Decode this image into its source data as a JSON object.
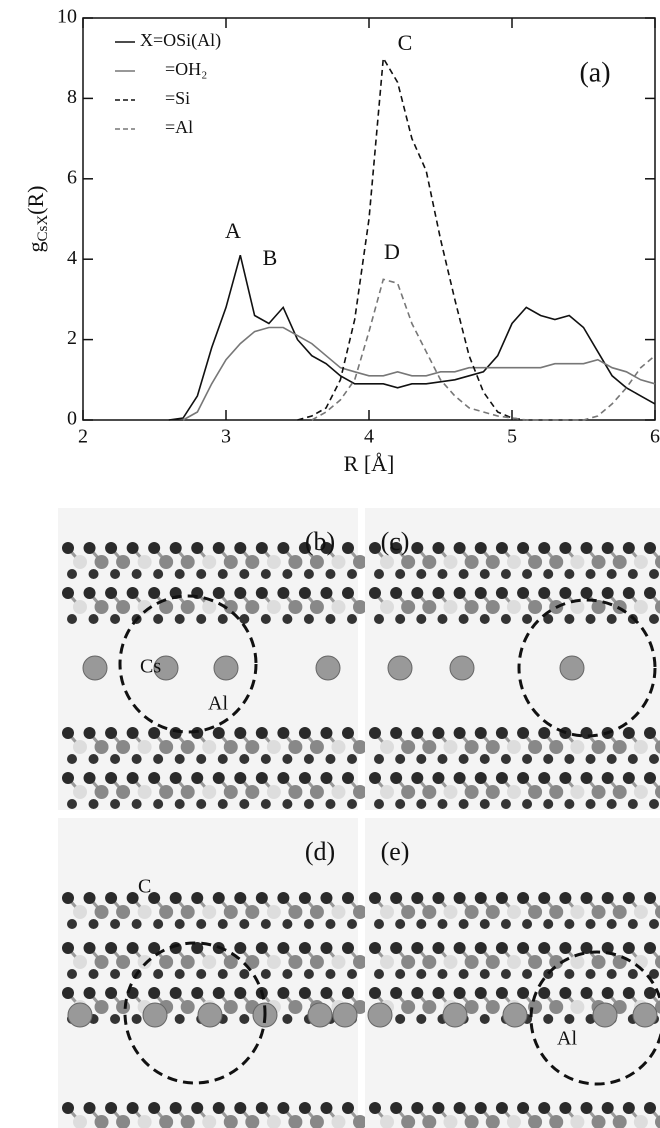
{
  "chart_data": {
    "type": "line",
    "x_label": "R [Å]",
    "y_label": "g",
    "y_label_sub": "CsX",
    "y_label_tail": "(R)",
    "panel_label": "(a)",
    "annotations": [
      "A",
      "B",
      "C",
      "D"
    ],
    "x": [
      2.0,
      2.1,
      2.2,
      2.3,
      2.4,
      2.5,
      2.6,
      2.7,
      2.8,
      2.9,
      3.0,
      3.1,
      3.2,
      3.3,
      3.4,
      3.5,
      3.6,
      3.7,
      3.8,
      3.9,
      4.0,
      4.1,
      4.2,
      4.3,
      4.4,
      4.5,
      4.6,
      4.7,
      4.8,
      4.9,
      5.0,
      5.1,
      5.2,
      5.3,
      5.4,
      5.5,
      5.6,
      5.7,
      5.8,
      5.9,
      6.0
    ],
    "series": [
      {
        "name": "X=OSi(Al)",
        "color": "#111111",
        "dashed": false,
        "values": [
          null,
          null,
          null,
          null,
          null,
          null,
          0,
          0.05,
          0.6,
          1.8,
          2.8,
          4.1,
          2.6,
          2.4,
          2.8,
          2.0,
          1.6,
          1.4,
          1.1,
          0.9,
          0.9,
          0.9,
          0.8,
          0.9,
          0.9,
          0.95,
          1.0,
          1.1,
          1.2,
          1.6,
          2.4,
          2.8,
          2.6,
          2.5,
          2.6,
          2.3,
          1.7,
          1.1,
          0.8,
          0.6,
          0.4
        ]
      },
      {
        "name": "=OH₂",
        "color": "#777777",
        "dashed": false,
        "values": [
          null,
          null,
          null,
          null,
          null,
          null,
          null,
          0,
          0.2,
          0.9,
          1.5,
          1.9,
          2.2,
          2.3,
          2.3,
          2.1,
          1.9,
          1.6,
          1.3,
          1.2,
          1.1,
          1.1,
          1.2,
          1.1,
          1.1,
          1.2,
          1.2,
          1.3,
          1.3,
          1.3,
          1.3,
          1.3,
          1.3,
          1.4,
          1.4,
          1.4,
          1.5,
          1.3,
          1.2,
          1.0,
          0.9
        ]
      },
      {
        "name": "=Si",
        "color": "#111111",
        "dashed": true,
        "values": [
          null,
          null,
          null,
          null,
          null,
          null,
          null,
          null,
          null,
          null,
          null,
          null,
          null,
          null,
          null,
          0,
          0.1,
          0.3,
          1.0,
          2.5,
          5.0,
          9.0,
          8.4,
          7.0,
          6.2,
          4.5,
          3.0,
          1.6,
          0.7,
          0.2,
          0.05,
          0,
          null,
          null,
          null,
          null,
          null,
          null,
          null,
          null,
          null
        ]
      },
      {
        "name": "=Al",
        "color": "#777777",
        "dashed": true,
        "values": [
          null,
          null,
          null,
          null,
          null,
          null,
          null,
          null,
          null,
          null,
          null,
          null,
          null,
          null,
          null,
          null,
          0,
          0.2,
          0.5,
          1.0,
          2.2,
          3.5,
          3.4,
          2.4,
          1.7,
          1.0,
          0.6,
          0.3,
          0.2,
          0.1,
          0.05,
          0,
          0,
          0,
          0,
          0,
          0.1,
          0.4,
          0.8,
          1.3,
          1.6
        ]
      }
    ],
    "xlim": [
      2,
      6
    ],
    "ylim": [
      0,
      10
    ],
    "xticks": [
      2,
      3,
      4,
      5,
      6
    ],
    "yticks": [
      0,
      2,
      4,
      6,
      8,
      10
    ]
  },
  "panels": [
    {
      "label": "(b)",
      "notes": [
        "Cs",
        "Al"
      ]
    },
    {
      "label": "(c)",
      "notes": []
    },
    {
      "label": "(d)",
      "notes": [
        "C"
      ]
    },
    {
      "label": "(e)",
      "notes": [
        "Al"
      ]
    }
  ]
}
